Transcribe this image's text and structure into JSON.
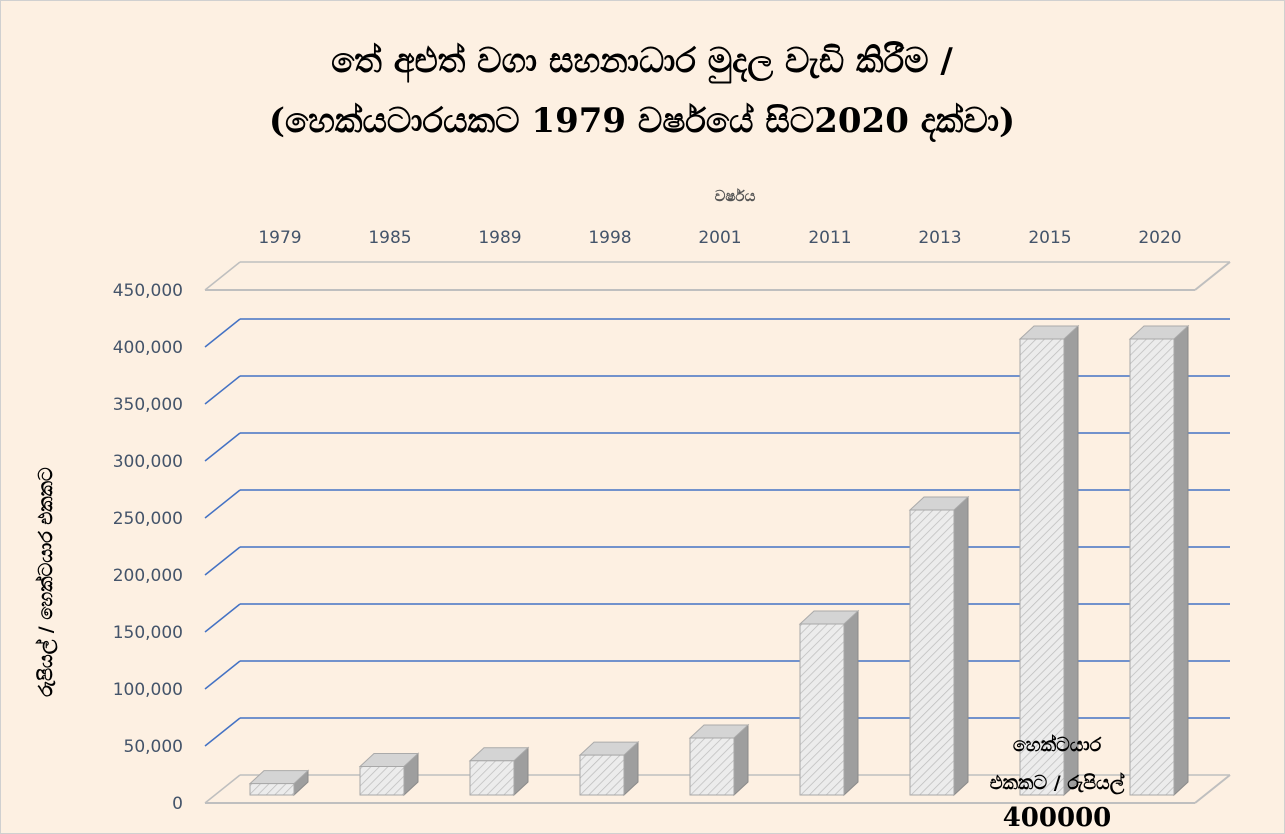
{
  "chart_data": {
    "type": "bar3d",
    "title": [
      "තේ අළුත් වගා සහනාධාර මුදල වැඩි කිරීම /",
      "(හෙක්යටාරයකට 1979 වර්ෂයේ සිට2020 දක්වා)"
    ],
    "x_label": "වර්ෂය",
    "y_label": "රුපියල් / හෙක්ටයාර එකකට",
    "categories": [
      "1979",
      "1985",
      "1989",
      "1998",
      "2001",
      "2011",
      "2013",
      "2015",
      "2020"
    ],
    "values": [
      10000,
      25000,
      30000,
      35000,
      50000,
      150000,
      250000,
      400000,
      400000
    ],
    "color": "#e6e6e6",
    "ylim": [
      0,
      450000
    ],
    "yticks": [
      0,
      {
        "value": 50000,
        "label": "50,000"
      },
      {
        "value": 100000,
        "label": "100,000"
      },
      {
        "value": 150000,
        "label": "150,000"
      },
      {
        "value": 200000,
        "label": "200,000"
      },
      {
        "value": 250000,
        "label": "250,000"
      },
      {
        "value": 300000,
        "label": "300,000"
      },
      {
        "value": 350000,
        "label": "350,000"
      },
      {
        "value": 400000,
        "label": "400,000"
      },
      {
        "value": 450000,
        "label": "450,000"
      }
    ],
    "grid": true,
    "grid_color": "#4472c4",
    "annotation": [
      "හෙක්ටයාර",
      "එකකට / රුපියල්",
      "400000"
    ]
  }
}
